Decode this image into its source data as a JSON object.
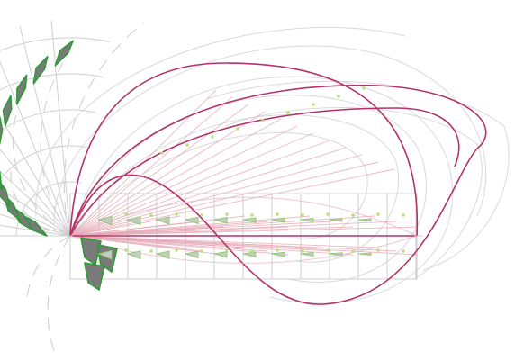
{
  "figure": {
    "kind": "parametric louver / fan array diagram",
    "colors": {
      "background": "#ffffff",
      "guides": "#d9d9d9",
      "curves": "#b3336a",
      "panel_fill": "#7a7a7a",
      "panel_edge": "#2e9a36",
      "tips": "#b9e27a"
    },
    "panel_rows": 2,
    "fan_panels": 11
  }
}
